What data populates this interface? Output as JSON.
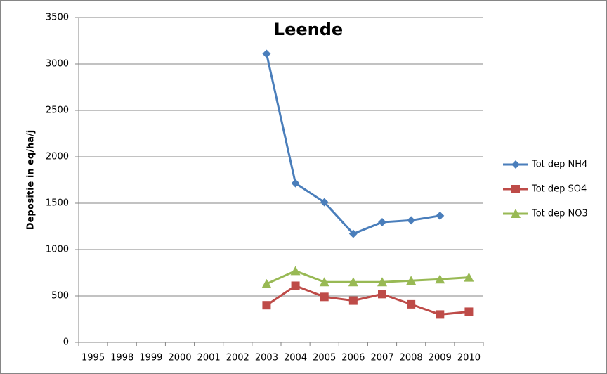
{
  "chart_data": {
    "type": "line",
    "title": "Leende",
    "y_label": "Depositie in eq/ha/j",
    "categories": [
      "1995",
      "1998",
      "1999",
      "2000",
      "2001",
      "2002",
      "2003",
      "2004",
      "2005",
      "2006",
      "2007",
      "2008",
      "2009",
      "2010"
    ],
    "series": [
      {
        "name": "Tot dep NH4",
        "color": "#4a7ebb",
        "marker": "diamond",
        "values": [
          null,
          null,
          null,
          null,
          null,
          null,
          3110,
          1715,
          1510,
          1170,
          1295,
          1315,
          1365,
          null
        ]
      },
      {
        "name": "Tot dep SO4",
        "color": "#be4b48",
        "marker": "square",
        "values": [
          null,
          null,
          null,
          null,
          null,
          null,
          400,
          610,
          490,
          450,
          520,
          410,
          300,
          330
        ]
      },
      {
        "name": "Tot dep NO3",
        "color": "#98b954",
        "marker": "triangle",
        "values": [
          null,
          null,
          null,
          null,
          null,
          null,
          630,
          770,
          650,
          650,
          650,
          665,
          680,
          700
        ]
      }
    ],
    "ylim": [
      0,
      3500
    ],
    "yticks": [
      0,
      500,
      1000,
      1500,
      2000,
      2500,
      3000,
      3500
    ],
    "grid": true,
    "legend": "right"
  }
}
